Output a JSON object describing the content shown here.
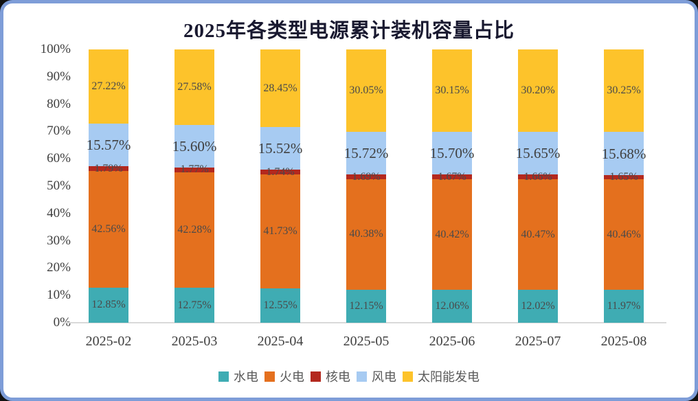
{
  "title": "2025年各类型电源累计装机容量占比",
  "colors": {
    "frame_border": "#7E9DD8",
    "card_background": "#FFFFFF",
    "axis_line": "#D9D9D9",
    "title_text": "#191930",
    "label_text": "#4a4a4a"
  },
  "chart_data": {
    "type": "bar",
    "stacked": true,
    "percent_stacked": true,
    "grid": false,
    "legend_position": "bottom",
    "title": "2025年各类型电源累计装机容量占比",
    "xlabel": "",
    "ylabel": "",
    "categories": [
      "2025-02",
      "2025-03",
      "2025-04",
      "2025-05",
      "2025-06",
      "2025-07",
      "2025-08"
    ],
    "series": [
      {
        "name": "水电",
        "color": "#3FACB3",
        "values": [
          12.85,
          12.75,
          12.55,
          12.15,
          12.06,
          12.02,
          11.97
        ]
      },
      {
        "name": "火电",
        "color": "#E4701E",
        "values": [
          42.56,
          42.28,
          41.73,
          40.38,
          40.42,
          40.47,
          40.46
        ]
      },
      {
        "name": "核电",
        "color": "#B3281E",
        "values": [
          1.79,
          1.77,
          1.74,
          1.69,
          1.67,
          1.66,
          1.65
        ]
      },
      {
        "name": "风电",
        "color": "#A7CBF2",
        "values": [
          15.57,
          15.6,
          15.52,
          15.72,
          15.7,
          15.65,
          15.68
        ]
      },
      {
        "name": "太阳能发电",
        "color": "#FDC32B",
        "values": [
          27.22,
          27.58,
          28.45,
          30.05,
          30.15,
          30.2,
          30.25
        ]
      }
    ],
    "y_axis": {
      "min": 0,
      "max": 100,
      "step": 10,
      "tick_labels": [
        "0%",
        "10%",
        "20%",
        "30%",
        "40%",
        "50%",
        "60%",
        "70%",
        "80%",
        "90%",
        "100%"
      ]
    },
    "data_label_format": "0.00%"
  }
}
